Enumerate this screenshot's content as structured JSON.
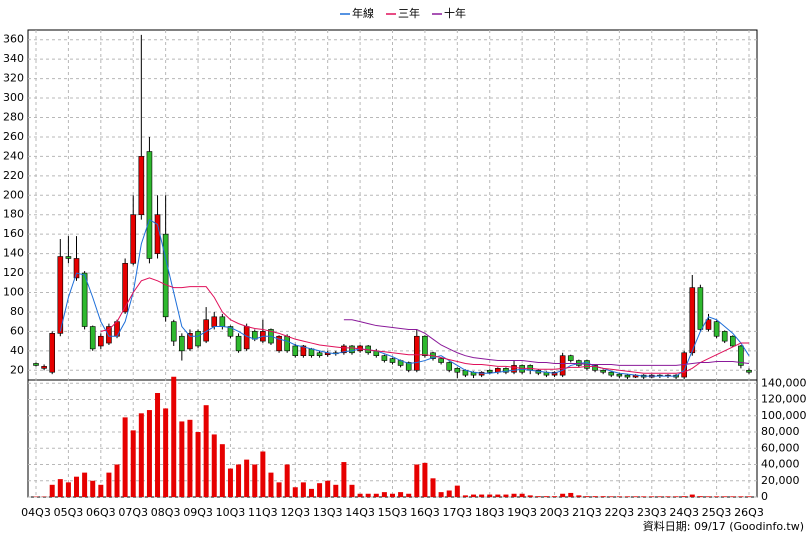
{
  "chart_data": [
    {
      "type": "candlestick",
      "up_color": "#e60000",
      "down_color": "#2eb82e",
      "grid": true,
      "legend": "top",
      "ylim": [
        10,
        370
      ],
      "yticks": [
        20,
        40,
        60,
        80,
        100,
        120,
        140,
        160,
        180,
        200,
        220,
        240,
        260,
        280,
        300,
        320,
        340,
        360
      ],
      "open": [
        27,
        22,
        18,
        58,
        137,
        115,
        120,
        65,
        45,
        48,
        55,
        80,
        130,
        180,
        245,
        140,
        160,
        70,
        55,
        42,
        60,
        50,
        65,
        75,
        65,
        55,
        42,
        60,
        50,
        62,
        40,
        55,
        45,
        35,
        42,
        38,
        36,
        38,
        38,
        45,
        40,
        45,
        40,
        35,
        32,
        30,
        28,
        20,
        55,
        38,
        32,
        28,
        22,
        20,
        18,
        15,
        20,
        18,
        22,
        18,
        25,
        25,
        20,
        18,
        15,
        15,
        35,
        30,
        30,
        25,
        20,
        18,
        16,
        15,
        13,
        15,
        13,
        15,
        14,
        15,
        13,
        38,
        105,
        62,
        70,
        60,
        55,
        45,
        20
      ],
      "high": [
        28,
        26,
        60,
        155,
        158,
        158,
        122,
        66,
        58,
        68,
        72,
        135,
        200,
        365,
        260,
        200,
        200,
        72,
        58,
        62,
        62,
        85,
        80,
        78,
        66,
        58,
        68,
        62,
        72,
        63,
        56,
        57,
        47,
        46,
        43,
        40,
        40,
        40,
        47,
        46,
        46,
        46,
        42,
        36,
        33,
        31,
        29,
        62,
        56,
        39,
        33,
        29,
        23,
        21,
        19,
        19,
        21,
        23,
        23,
        30,
        26,
        26,
        21,
        19,
        19,
        38,
        36,
        31,
        31,
        26,
        21,
        19,
        17,
        16,
        16,
        16,
        16,
        16,
        16,
        16,
        40,
        118,
        108,
        78,
        71,
        61,
        56,
        46,
        22
      ],
      "low": [
        24,
        20,
        16,
        55,
        130,
        112,
        62,
        40,
        42,
        46,
        53,
        78,
        128,
        175,
        130,
        135,
        70,
        45,
        30,
        40,
        43,
        48,
        62,
        62,
        53,
        38,
        40,
        50,
        48,
        46,
        38,
        38,
        33,
        33,
        33,
        33,
        34,
        35,
        36,
        36,
        38,
        36,
        33,
        28,
        26,
        23,
        18,
        18,
        33,
        30,
        26,
        18,
        12,
        13,
        12,
        13,
        16,
        16,
        16,
        16,
        16,
        16,
        15,
        13,
        13,
        13,
        28,
        23,
        20,
        18,
        16,
        13,
        12,
        11,
        12,
        11,
        12,
        12,
        12,
        11,
        11,
        35,
        60,
        60,
        53,
        48,
        44,
        22,
        16
      ],
      "close": [
        25,
        24,
        58,
        137,
        135,
        135,
        65,
        42,
        55,
        65,
        70,
        130,
        180,
        240,
        135,
        180,
        75,
        50,
        40,
        58,
        45,
        72,
        75,
        65,
        55,
        40,
        65,
        52,
        60,
        48,
        55,
        40,
        35,
        45,
        35,
        35,
        38,
        37,
        45,
        38,
        45,
        38,
        35,
        30,
        28,
        25,
        20,
        55,
        35,
        32,
        28,
        20,
        18,
        15,
        15,
        18,
        18,
        22,
        18,
        25,
        18,
        20,
        17,
        15,
        18,
        35,
        30,
        25,
        22,
        20,
        18,
        15,
        14,
        13,
        15,
        13,
        15,
        14,
        15,
        13,
        38,
        105,
        62,
        72,
        55,
        50,
        45,
        25,
        18
      ],
      "series": [
        {
          "name": "年線",
          "color": "#1e6fd9",
          "values": [
            null,
            null,
            null,
            60,
            95,
            120,
            118,
            95,
            70,
            55,
            55,
            70,
            100,
            150,
            175,
            170,
            135,
            100,
            65,
            55,
            55,
            60,
            65,
            65,
            64,
            60,
            55,
            52,
            55,
            55,
            52,
            50,
            46,
            44,
            42,
            40,
            38,
            37,
            39,
            40,
            42,
            41,
            40,
            37,
            34,
            30,
            27,
            28,
            30,
            33,
            35,
            30,
            25,
            20,
            18,
            17,
            17,
            18,
            19,
            20,
            21,
            20,
            19,
            18,
            17,
            20,
            25,
            27,
            28,
            24,
            22,
            19,
            17,
            16,
            15,
            14,
            14,
            14,
            14,
            14,
            20,
            40,
            60,
            75,
            72,
            65,
            58,
            48,
            35
          ]
        },
        {
          "name": "三年",
          "color": "#e0105a",
          "values": [
            null,
            null,
            null,
            null,
            null,
            null,
            null,
            null,
            60,
            62,
            70,
            85,
            100,
            112,
            115,
            112,
            108,
            105,
            105,
            106,
            106,
            106,
            95,
            80,
            72,
            68,
            65,
            63,
            62,
            60,
            58,
            55,
            52,
            50,
            48,
            46,
            45,
            44,
            43,
            43,
            42,
            41,
            40,
            39,
            38,
            37,
            36,
            36,
            36,
            35,
            33,
            31,
            29,
            27,
            26,
            26,
            25,
            24,
            24,
            23,
            22,
            22,
            21,
            21,
            21,
            22,
            23,
            23,
            24,
            24,
            22,
            21,
            20,
            19,
            18,
            17,
            17,
            17,
            17,
            17,
            18,
            22,
            28,
            32,
            36,
            40,
            44,
            48,
            48
          ]
        },
        {
          "name": "十年",
          "color": "#8a1a9a",
          "values": [
            null,
            null,
            null,
            null,
            null,
            null,
            null,
            null,
            null,
            null,
            null,
            null,
            null,
            null,
            null,
            null,
            null,
            null,
            null,
            null,
            null,
            null,
            null,
            null,
            null,
            null,
            null,
            null,
            null,
            null,
            null,
            null,
            null,
            null,
            null,
            null,
            null,
            null,
            72,
            72,
            70,
            68,
            66,
            65,
            64,
            63,
            62,
            62,
            58,
            52,
            46,
            42,
            38,
            35,
            33,
            32,
            31,
            30,
            30,
            30,
            30,
            29,
            28,
            28,
            27,
            27,
            27,
            27,
            26,
            26,
            26,
            26,
            25,
            25,
            25,
            25,
            25,
            25,
            25,
            25,
            26,
            27,
            28,
            28,
            29,
            29,
            29,
            28,
            27
          ]
        }
      ]
    },
    {
      "type": "bar",
      "color": "#e60000",
      "grid": true,
      "source": "資料日期: 09/17 (Goodinfo.tw)",
      "categories": [
        "04Q3",
        null,
        null,
        null,
        "05Q3",
        null,
        null,
        null,
        "06Q3",
        null,
        null,
        null,
        "07Q3",
        null,
        null,
        null,
        "08Q3",
        null,
        null,
        null,
        "09Q3",
        null,
        null,
        null,
        "10Q3",
        null,
        null,
        null,
        "11Q3",
        null,
        null,
        null,
        "12Q3",
        null,
        null,
        null,
        "13Q3",
        null,
        null,
        null,
        "14Q3",
        null,
        null,
        null,
        "15Q3",
        null,
        null,
        null,
        "16Q3",
        null,
        null,
        null,
        "17Q3",
        null,
        null,
        null,
        "18Q3",
        null,
        null,
        null,
        "19Q3",
        null,
        null,
        null,
        "20Q3",
        null,
        null,
        null,
        "21Q3",
        null,
        null,
        null,
        "22Q3",
        null,
        null,
        null,
        "23Q3",
        null,
        null,
        null,
        "24Q3",
        null,
        null,
        null,
        "25Q3",
        null,
        null,
        null,
        "26Q3"
      ],
      "values": [
        500,
        500,
        15000,
        22000,
        18000,
        25000,
        30000,
        20000,
        15000,
        30000,
        40000,
        98000,
        82000,
        103000,
        107000,
        128000,
        109000,
        148000,
        93000,
        95000,
        80000,
        113000,
        77000,
        65000,
        35000,
        40000,
        46000,
        40000,
        56000,
        30000,
        18000,
        40000,
        12000,
        18000,
        10000,
        17000,
        20000,
        15000,
        43000,
        15000,
        4000,
        4000,
        4000,
        6000,
        4000,
        6000,
        4000,
        40000,
        42000,
        23000,
        6000,
        8000,
        14000,
        2000,
        3000,
        3000,
        3000,
        3000,
        3000,
        4000,
        4000,
        2000,
        1000,
        1000,
        1000,
        4000,
        5000,
        2000,
        1000,
        1000,
        1000,
        800,
        800,
        800,
        800,
        800,
        800,
        800,
        800,
        800,
        1000,
        3000,
        1000,
        800,
        800,
        800,
        800,
        800,
        800
      ],
      "ylim": [
        0,
        144000
      ],
      "yticks": [
        0,
        {
          "value": 20000,
          "label": "20,000"
        },
        {
          "value": 40000,
          "label": "40,000"
        },
        {
          "value": 60000,
          "label": "60,000"
        },
        {
          "value": 80000,
          "label": "80,000"
        },
        {
          "value": 100000,
          "label": "100,000"
        },
        {
          "value": 120000,
          "label": "120,000"
        },
        {
          "value": 140000,
          "label": "140,000"
        }
      ]
    }
  ]
}
